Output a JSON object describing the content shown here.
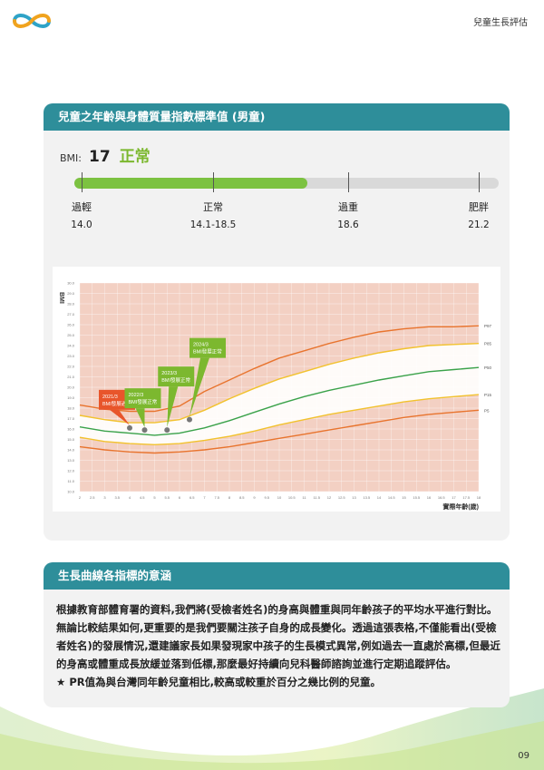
{
  "header": {
    "doc_title": "兒童生長評估"
  },
  "section_bmi": {
    "title": "兒童之年齡與身體質量指數標準值 (男童)",
    "bmi_label": "BMI:",
    "bmi_value": "17",
    "status": "正常",
    "bar_fill_fraction": 0.55,
    "categories": [
      {
        "label": "過輕",
        "range": "14.0"
      },
      {
        "label": "正常",
        "range": "14.1-18.5"
      },
      {
        "label": "過重",
        "range": "18.6"
      },
      {
        "label": "肥胖",
        "range": "21.2"
      }
    ]
  },
  "chart_data": {
    "type": "line",
    "ylabel": "BMI",
    "xlabel": "實際年齡(歲)",
    "ylim": [
      10.0,
      30.0
    ],
    "xlim": [
      2,
      18
    ],
    "grid": true,
    "x": [
      2,
      3,
      4,
      5,
      6,
      7,
      8,
      9,
      10,
      11,
      12,
      13,
      14,
      15,
      16,
      17,
      18
    ],
    "series": [
      {
        "name": "P97",
        "color": "#e8742e",
        "values": [
          18.3,
          17.9,
          17.7,
          17.7,
          18.2,
          19.6,
          20.7,
          21.8,
          22.8,
          23.5,
          24.2,
          24.8,
          25.3,
          25.6,
          25.8,
          25.8,
          25.9
        ]
      },
      {
        "name": "P85",
        "color": "#f2c22e",
        "values": [
          17.3,
          16.9,
          16.6,
          16.6,
          16.9,
          17.8,
          18.9,
          19.9,
          20.8,
          21.5,
          22.2,
          22.8,
          23.3,
          23.7,
          24.0,
          24.1,
          24.2
        ]
      },
      {
        "name": "P50",
        "color": "#3aa24a",
        "values": [
          16.2,
          15.8,
          15.6,
          15.4,
          15.6,
          16.1,
          16.8,
          17.6,
          18.4,
          19.1,
          19.7,
          20.2,
          20.7,
          21.1,
          21.5,
          21.7,
          21.9
        ]
      },
      {
        "name": "P15",
        "color": "#f2c22e",
        "values": [
          15.2,
          14.8,
          14.6,
          14.5,
          14.6,
          14.9,
          15.3,
          15.8,
          16.4,
          16.9,
          17.4,
          17.8,
          18.2,
          18.6,
          18.9,
          19.1,
          19.3
        ]
      },
      {
        "name": "P5",
        "color": "#e8742e",
        "values": [
          14.3,
          14.0,
          13.8,
          13.7,
          13.8,
          14.0,
          14.3,
          14.7,
          15.1,
          15.5,
          15.9,
          16.3,
          16.7,
          17.1,
          17.4,
          17.6,
          17.8
        ]
      }
    ],
    "points": [
      {
        "x": 4.0,
        "y": 16.1,
        "label_date": "2021/3",
        "label_text": "BMI發展過重",
        "color": "#e8552b"
      },
      {
        "x": 4.6,
        "y": 15.9,
        "label_date": "2022/3",
        "label_text": "BMI發展正常",
        "color": "#7cb82f"
      },
      {
        "x": 5.5,
        "y": 15.9,
        "label_date": "2023/3",
        "label_text": "BMI發展正常",
        "color": "#7cb82f"
      },
      {
        "x": 6.4,
        "y": 16.9,
        "label_date": "2024/3",
        "label_text": "BMI發展正常",
        "color": "#7cb82f"
      }
    ]
  },
  "section_meaning": {
    "title": "生長曲線各指標的意涵",
    "paragraph": "根據教育部體育署的資料,我們將(受檢者姓名)的身高與體重與同年齡孩子的平均水平進行對比。無論比較結果如何,更重要的是我們要關注孩子自身的成長變化。透過這張表格,不僅能看出(受檢者姓名)的發展情況,還建議家長如果發現家中孩子的生長模式異常,例如過去一直處於高標,但最近的身高或體重成長放緩並落到低標,那麼最好持續向兒科醫師諮詢並進行定期追蹤評估。",
    "note": "★ PR值為與台灣同年齡兒童相比,較高或較重於百分之幾比例的兒童。"
  },
  "footer": {
    "page_number": "09"
  },
  "colors": {
    "header_teal": "#2e8e9a",
    "accent_green": "#7cb82f",
    "bar_track": "#d9d9d9",
    "chart_fill": "#f3d0c3"
  }
}
